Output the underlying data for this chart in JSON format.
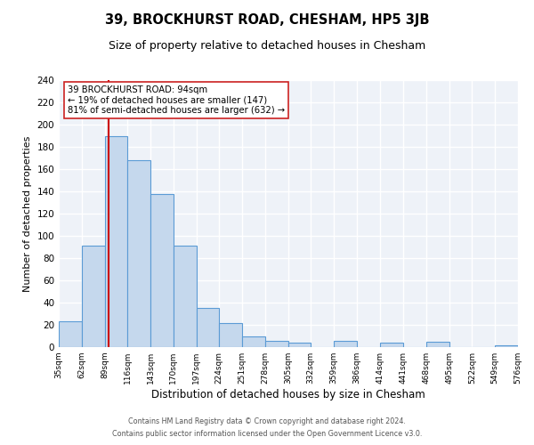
{
  "title": "39, BROCKHURST ROAD, CHESHAM, HP5 3JB",
  "subtitle": "Size of property relative to detached houses in Chesham",
  "xlabel": "Distribution of detached houses by size in Chesham",
  "ylabel": "Number of detached properties",
  "bar_color": "#c5d8ed",
  "bar_edge_color": "#5b9bd5",
  "bins": [
    35,
    62,
    89,
    116,
    143,
    170,
    197,
    224,
    251,
    278,
    305,
    332,
    359,
    386,
    414,
    441,
    468,
    495,
    522,
    549,
    576
  ],
  "counts": [
    23,
    91,
    190,
    168,
    138,
    91,
    35,
    22,
    10,
    6,
    4,
    0,
    6,
    0,
    4,
    0,
    5,
    0,
    0,
    2
  ],
  "property_size": 94,
  "vline_color": "#cc0000",
  "annotation_line1": "39 BROCKHURST ROAD: 94sqm",
  "annotation_line2": "← 19% of detached houses are smaller (147)",
  "annotation_line3": "81% of semi-detached houses are larger (632) →",
  "ylim": [
    0,
    240
  ],
  "yticks": [
    0,
    20,
    40,
    60,
    80,
    100,
    120,
    140,
    160,
    180,
    200,
    220,
    240
  ],
  "footer1": "Contains HM Land Registry data © Crown copyright and database right 2024.",
  "footer2": "Contains public sector information licensed under the Open Government Licence v3.0.",
  "bg_color": "#eef2f8",
  "grid_color": "#ffffff",
  "title_fontsize": 10.5,
  "subtitle_fontsize": 9,
  "tick_labels": [
    "35sqm",
    "62sqm",
    "89sqm",
    "116sqm",
    "143sqm",
    "170sqm",
    "197sqm",
    "224sqm",
    "251sqm",
    "278sqm",
    "305sqm",
    "332sqm",
    "359sqm",
    "386sqm",
    "414sqm",
    "441sqm",
    "468sqm",
    "495sqm",
    "522sqm",
    "549sqm",
    "576sqm"
  ]
}
